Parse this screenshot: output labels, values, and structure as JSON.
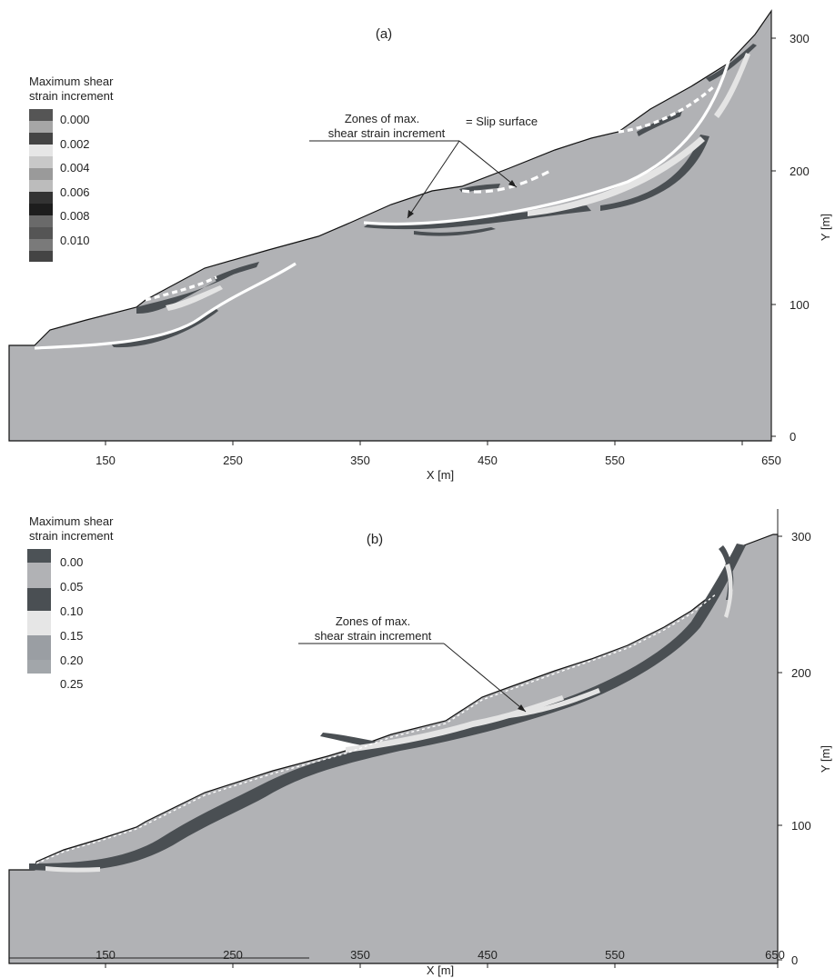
{
  "panels": [
    {
      "id": "a",
      "label": "(a)",
      "xlabel": "X [m]",
      "ylabel": "Y [m]",
      "x_ticks": [
        "150",
        "250",
        "350",
        "450",
        "550",
        "650"
      ],
      "y_ticks": [
        "0",
        "100",
        "200",
        "300"
      ],
      "legend_title_line1": "Maximum shear",
      "legend_title_line2": "strain increment",
      "legend_values": [
        "0.000",
        "0.002",
        "0.004",
        "0.006",
        "0.008",
        "0.010"
      ],
      "annotation_line1": "Zones of max.",
      "annotation_line2": "shear strain increment",
      "slip_surface_label": "= Slip surface"
    },
    {
      "id": "b",
      "label": "(b)",
      "xlabel": "X [m]",
      "ylabel": "Y [m]",
      "x_ticks": [
        "150",
        "250",
        "350",
        "450",
        "550",
        "650"
      ],
      "y_ticks": [
        "0",
        "100",
        "200",
        "300"
      ],
      "legend_title_line1": "Maximum shear",
      "legend_title_line2": "strain increment",
      "legend_values": [
        "0.00",
        "0.05",
        "0.10",
        "0.15",
        "0.20",
        "0.25"
      ],
      "annotation_line1": "Zones of max.",
      "annotation_line2": "shear strain increment"
    }
  ],
  "colors": {
    "soil": "#b1b2b5",
    "slope_line": "#111111",
    "shear_dark": "#4a4f53",
    "shear_light": "#e4e4e4",
    "slip_surface": "#ffffff"
  }
}
